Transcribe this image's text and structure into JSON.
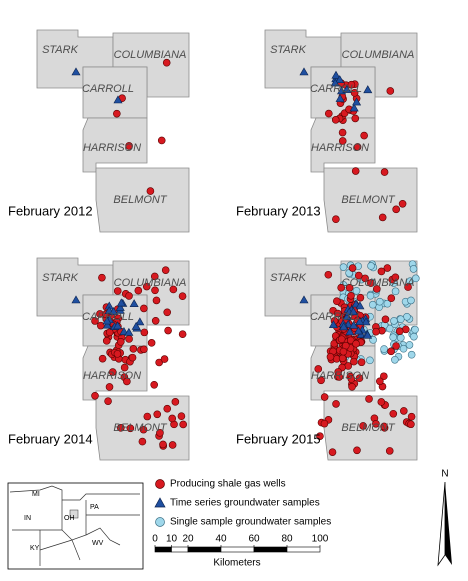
{
  "panels": [
    {
      "label": "February 2012",
      "counties": [
        "STARK",
        "COLUMBIANA",
        "CARROLL",
        "HARRISON",
        "BELMONT"
      ]
    },
    {
      "label": "February 2013",
      "counties": [
        "STARK",
        "COLUMBIANA",
        "CARROLL",
        "HARRISON",
        "BELMONT"
      ]
    },
    {
      "label": "February 2014",
      "counties": [
        "STARK",
        "COLUMBIANA",
        "CARROLL",
        "HARRISON",
        "BELMONT"
      ]
    },
    {
      "label": "February 2015",
      "counties": [
        "STARK",
        "COLUMBIANA",
        "CARROLL",
        "HARRISON",
        "BELMONT"
      ]
    }
  ],
  "legend": [
    "Producing shale gas wells",
    "Time series groundwater samples",
    "Single sample groundwater samples"
  ],
  "inset": [
    "MI",
    "OH",
    "PA",
    "IN",
    "KY",
    "WV"
  ],
  "scale_bar": {
    "ticks": [
      0,
      10,
      20,
      40,
      60,
      80,
      100
    ],
    "unit": "Kilometers"
  },
  "north_arrow": "N"
}
